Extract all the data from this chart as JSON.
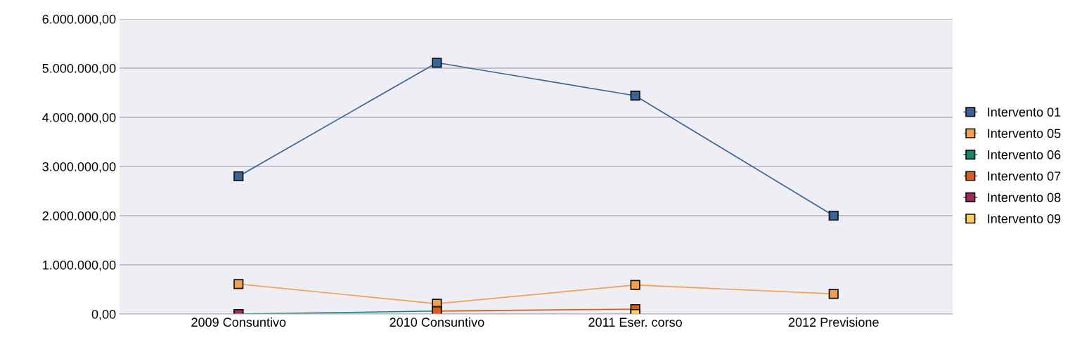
{
  "chart_data": {
    "type": "line",
    "categories": [
      "2009 Consuntivo",
      "2010 Consuntivo",
      "2011 Eser. corso",
      "2012 Previsione"
    ],
    "series": [
      {
        "name": "Intervento 01",
        "color": "#3a6496",
        "values": [
          2800000,
          5110000,
          4440000,
          2000000
        ]
      },
      {
        "name": "Intervento 05",
        "color": "#f0a050",
        "values": [
          610000,
          210000,
          590000,
          410000
        ]
      },
      {
        "name": "Intervento 06",
        "color": "#0e8a6a",
        "values": [
          0,
          60000,
          null,
          null
        ]
      },
      {
        "name": "Intervento 07",
        "color": "#e05a1c",
        "values": [
          null,
          60000,
          100000,
          null
        ]
      },
      {
        "name": "Intervento 08",
        "color": "#9c2a5e",
        "values": [
          0,
          null,
          null,
          null
        ]
      },
      {
        "name": "Intervento 09",
        "color": "#ffd060",
        "values": [
          null,
          null,
          0,
          null
        ]
      }
    ],
    "ylim": [
      0,
      6000000
    ],
    "yticks": [
      {
        "value": 0,
        "label": "0,00"
      },
      {
        "value": 1000000,
        "label": "1.000.000,00"
      },
      {
        "value": 2000000,
        "label": "2.000.000,00"
      },
      {
        "value": 3000000,
        "label": "3.000.000,00"
      },
      {
        "value": 4000000,
        "label": "4.000.000,00"
      },
      {
        "value": 5000000,
        "label": "5.000.000,00"
      },
      {
        "value": 6000000,
        "label": "6.000.000,00"
      }
    ],
    "grid": "y",
    "legend": "right",
    "marker": "square",
    "line_style": "solid"
  }
}
